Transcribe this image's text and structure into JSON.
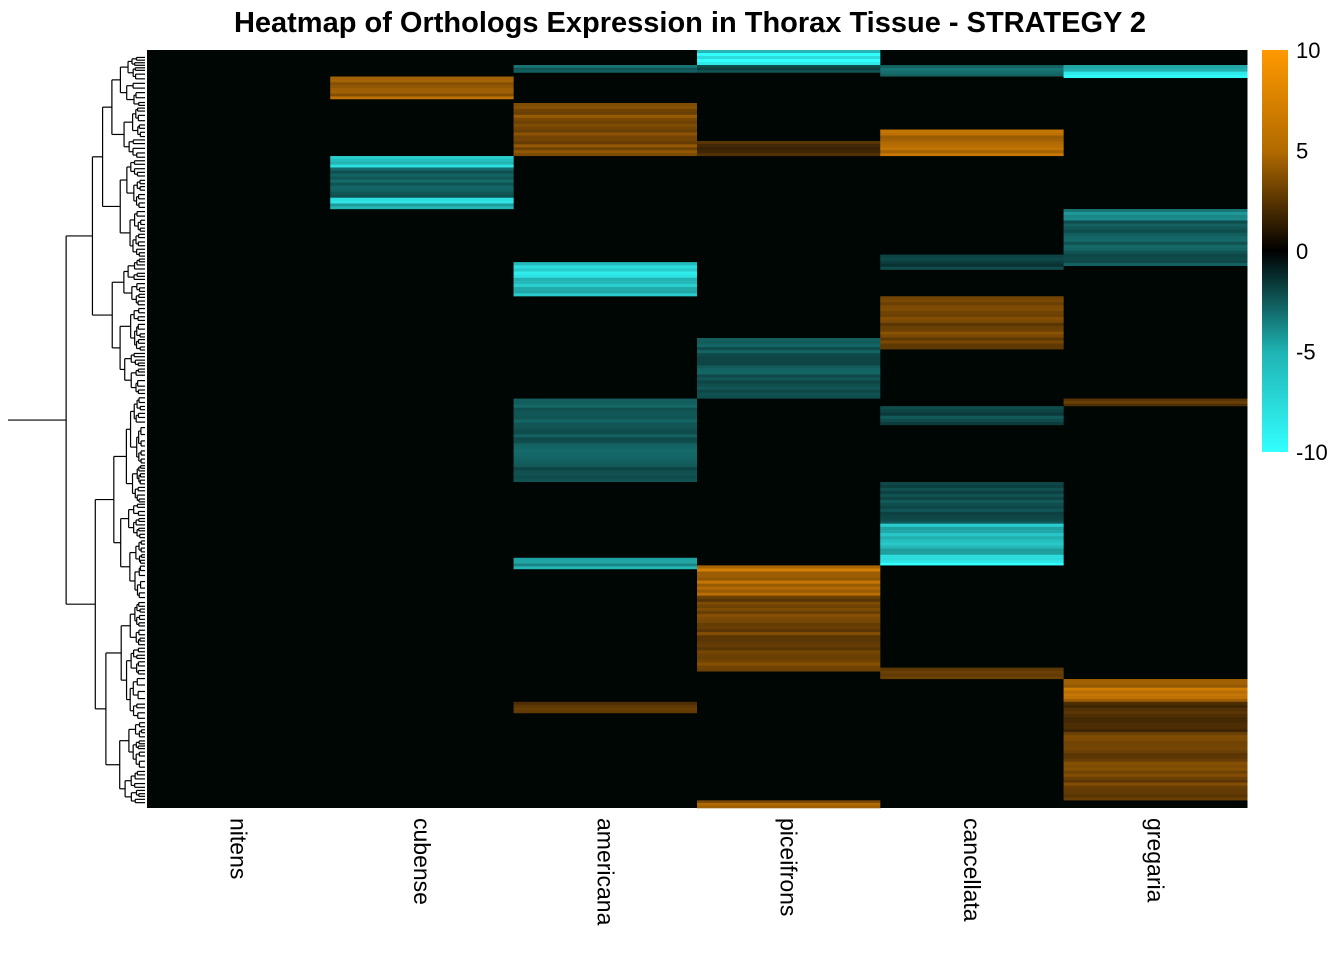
{
  "chart_data": {
    "type": "heatmap",
    "title": "Heatmap of Orthologs Expression in Thorax Tissue - STRATEGY 2",
    "columns": [
      "nitens",
      "cubense",
      "americana",
      "piceifrons",
      "cancellata",
      "gregaria"
    ],
    "value_range": [
      -10,
      10
    ],
    "colors": {
      "low": "#33ffff",
      "mid": "#000000",
      "high": "#ff9900"
    },
    "legend": {
      "position": "right",
      "ticks": [
        {
          "value": 10,
          "label": "10"
        },
        {
          "value": 5,
          "label": "5"
        },
        {
          "value": 0,
          "label": "0"
        },
        {
          "value": -5,
          "label": "-5"
        },
        {
          "value": -10,
          "label": "-10"
        }
      ]
    },
    "row_dendrogram": true,
    "row_blocks_note": "Values per column as ordered row segments (row fractions 0-1 from top to bottom, expression value)",
    "blocks": {
      "nitens": [
        [
          0.0,
          1.0,
          0
        ]
      ],
      "cubense": [
        [
          0.0,
          0.035,
          0
        ],
        [
          0.035,
          0.065,
          6.5
        ],
        [
          0.065,
          0.1,
          0
        ],
        [
          0.1,
          0.14,
          0
        ],
        [
          0.14,
          0.155,
          -8
        ],
        [
          0.155,
          0.195,
          -4
        ],
        [
          0.195,
          0.21,
          -7.5
        ],
        [
          0.21,
          1.0,
          0
        ]
      ],
      "americana": [
        [
          0.0,
          0.02,
          0
        ],
        [
          0.02,
          0.03,
          -4
        ],
        [
          0.03,
          0.07,
          0
        ],
        [
          0.07,
          0.14,
          5
        ],
        [
          0.14,
          0.21,
          0
        ],
        [
          0.21,
          0.28,
          0
        ],
        [
          0.28,
          0.325,
          -8.5
        ],
        [
          0.325,
          0.46,
          0
        ],
        [
          0.46,
          0.57,
          -3.5
        ],
        [
          0.57,
          0.67,
          0
        ],
        [
          0.67,
          0.685,
          -6
        ],
        [
          0.685,
          0.86,
          0
        ],
        [
          0.86,
          0.875,
          4
        ],
        [
          0.875,
          1.0,
          0
        ]
      ],
      "piceifrons": [
        [
          0.0,
          0.02,
          -9
        ],
        [
          0.02,
          0.03,
          -3
        ],
        [
          0.03,
          0.12,
          0
        ],
        [
          0.12,
          0.14,
          3
        ],
        [
          0.14,
          0.38,
          0
        ],
        [
          0.38,
          0.46,
          -3.5
        ],
        [
          0.46,
          0.68,
          0
        ],
        [
          0.68,
          0.72,
          7.5
        ],
        [
          0.72,
          0.82,
          4.5
        ],
        [
          0.82,
          0.99,
          0
        ],
        [
          0.99,
          1.0,
          6
        ]
      ],
      "cancellata": [
        [
          0.0,
          0.02,
          0
        ],
        [
          0.02,
          0.035,
          -4
        ],
        [
          0.035,
          0.105,
          0
        ],
        [
          0.105,
          0.14,
          6.5
        ],
        [
          0.14,
          0.27,
          0
        ],
        [
          0.27,
          0.29,
          -2.5
        ],
        [
          0.29,
          0.325,
          0
        ],
        [
          0.325,
          0.395,
          4.5
        ],
        [
          0.395,
          0.47,
          0
        ],
        [
          0.47,
          0.495,
          -3
        ],
        [
          0.495,
          0.57,
          0
        ],
        [
          0.57,
          0.625,
          -3
        ],
        [
          0.625,
          0.67,
          -8
        ],
        [
          0.67,
          0.68,
          -9
        ],
        [
          0.68,
          0.815,
          0
        ],
        [
          0.815,
          0.83,
          4.5
        ],
        [
          0.83,
          1.0,
          0
        ]
      ],
      "gregaria": [
        [
          0.0,
          0.02,
          0
        ],
        [
          0.02,
          0.037,
          -8.5
        ],
        [
          0.037,
          0.21,
          0
        ],
        [
          0.21,
          0.225,
          -6
        ],
        [
          0.225,
          0.285,
          -3.5
        ],
        [
          0.285,
          0.46,
          0
        ],
        [
          0.46,
          0.47,
          3.5
        ],
        [
          0.47,
          0.83,
          0
        ],
        [
          0.83,
          0.86,
          7
        ],
        [
          0.86,
          0.9,
          3
        ],
        [
          0.9,
          0.99,
          4.5
        ],
        [
          0.99,
          1.0,
          0
        ]
      ]
    }
  }
}
